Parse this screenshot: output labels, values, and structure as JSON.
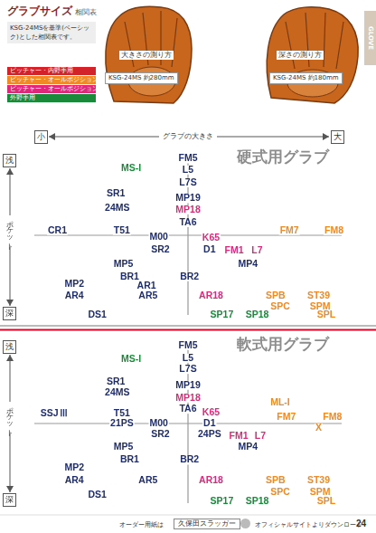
{
  "header": {
    "title": "グラブサイズ",
    "title_suffix": "相関表",
    "note": "KSG-24MSを基準(ベーシック)とした相関表です。",
    "tab": "GLOVE",
    "legend": [
      {
        "text": "ピッチャー・内野手用",
        "color": "#d2232a"
      },
      {
        "text": "ピッチャー・オールポジション用",
        "color": "#f08a24"
      },
      {
        "text": "ピッチャー・オールポジション用",
        "color": "#e0287a"
      },
      {
        "text": "外野手用",
        "color": "#1a8a3a"
      }
    ],
    "photos": [
      {
        "caption": "大きさの測り方",
        "model": "KSG-24MS",
        "size": "約280mm"
      },
      {
        "caption": "深さの測り方",
        "model": "KSG-24MS",
        "size": "約180mm"
      }
    ]
  },
  "size_axis": {
    "small": "小",
    "label": "グラブの大きさ",
    "large": "大"
  },
  "chart_data": [
    {
      "type": "scatter",
      "title": "硬式用グラブ",
      "depth_labels": {
        "top": "浅",
        "middle": "ポケット",
        "bottom": "深"
      },
      "labels": [
        "MS-I",
        "FM5",
        "L5",
        "L7S",
        "SR1",
        "24MS",
        "MP19",
        "MP18",
        "TA6",
        "CR1",
        "T51",
        "M00",
        "SR2",
        "K65",
        "D1",
        "FM7",
        "FM8",
        "FM1",
        "L7",
        "MP4",
        "MP5",
        "BR1",
        "AR1",
        "AR5",
        "BR2",
        "MP2",
        "AR4",
        "DS1",
        "AR18",
        "SPB",
        "ST39",
        "SPC",
        "SPM",
        "SP17",
        "SP18",
        "SPL"
      ],
      "x": [
        -3.7,
        0,
        0,
        0,
        -4.7,
        -4.6,
        0,
        0,
        0,
        -8.5,
        -4.3,
        -1.9,
        -1.8,
        1.5,
        1.4,
        6.6,
        9.5,
        3.0,
        4.5,
        3.9,
        -4.2,
        -3.8,
        -2.7,
        -2.6,
        0.1,
        -7.4,
        -7.4,
        -5.9,
        1.5,
        5.7,
        8.5,
        6.0,
        8.6,
        2.2,
        4.5,
        9.0
      ],
      "values": [
        0.8,
        0.2,
        0.9,
        1.7,
        2.4,
        3.3,
        2.7,
        3.4,
        4.2,
        4.7,
        4.7,
        5.1,
        5.9,
        5.2,
        5.9,
        4.7,
        4.7,
        6.0,
        6.0,
        6.8,
        6.8,
        7.6,
        8.2,
        8.8,
        7.6,
        8.1,
        8.8,
        10.0,
        8.8,
        8.8,
        8.8,
        9.5,
        9.5,
        10.0,
        10.0,
        10.0
      ],
      "colors": [
        "#1a8a3a",
        "#1f2d6b",
        "#1f2d6b",
        "#1f2d6b",
        "#1f2d6b",
        "#1f2d6b",
        "#1f2d6b",
        "#e0287a",
        "#1f2d6b",
        "#1f2d6b",
        "#1f2d6b",
        "#1f2d6b",
        "#1f2d6b",
        "#e0287a",
        "#1f2d6b",
        "#f08a24",
        "#f08a24",
        "#e0287a",
        "#e0287a",
        "#1f2d6b",
        "#1f2d6b",
        "#1f2d6b",
        "#1f2d6b",
        "#1f2d6b",
        "#1f2d6b",
        "#1f2d6b",
        "#1f2d6b",
        "#1f2d6b",
        "#e0287a",
        "#f08a24",
        "#f08a24",
        "#f08a24",
        "#f08a24",
        "#1a8a3a",
        "#1a8a3a",
        "#f08a24"
      ],
      "xlim": [
        -10,
        10
      ],
      "ylim": [
        0,
        10
      ],
      "tick_labels": false,
      "grid": false
    },
    {
      "type": "scatter",
      "title": "軟式用グラブ",
      "depth_labels": {
        "top": "浅",
        "middle": "ポケット",
        "bottom": "深"
      },
      "labels": [
        "MS-I",
        "FM5",
        "L5",
        "L7S",
        "SR1",
        "24MS",
        "MP19",
        "MP18",
        "TA6",
        "ML-I",
        "SSJⅢ",
        "T51",
        "K65",
        "FM7",
        "FM8",
        "21PS",
        "M00",
        "D1",
        "X",
        "SR2",
        "24PS",
        "FM1",
        "L7",
        "MP4",
        "MP5",
        "BR1",
        "BR2",
        "MP2",
        "AR4",
        "AR5",
        "AR18",
        "DS1",
        "SPB",
        "ST39",
        "SPC",
        "SPM",
        "SP17",
        "SP18",
        "SPL"
      ],
      "x": [
        -3.7,
        0,
        0,
        0,
        -4.7,
        -4.6,
        0,
        0,
        0,
        6.0,
        -8.7,
        -4.3,
        1.5,
        6.4,
        9.4,
        -4.3,
        -1.9,
        1.4,
        8.5,
        -1.8,
        1.4,
        3.3,
        4.7,
        3.9,
        -4.2,
        -3.8,
        0.1,
        -7.4,
        -7.4,
        -2.6,
        1.5,
        -5.9,
        5.7,
        8.5,
        6.0,
        8.6,
        2.2,
        4.5,
        9.0
      ],
      "values": [
        1.0,
        0.1,
        0.9,
        1.6,
        2.4,
        3.1,
        2.6,
        3.4,
        4.1,
        3.7,
        4.4,
        4.4,
        4.3,
        4.6,
        4.6,
        5.0,
        5.0,
        5.0,
        5.3,
        5.7,
        5.7,
        5.8,
        5.8,
        6.5,
        6.5,
        7.3,
        7.3,
        7.8,
        8.6,
        8.6,
        8.6,
        9.5,
        8.6,
        8.6,
        9.3,
        9.3,
        9.9,
        9.9,
        9.9
      ],
      "colors": [
        "#1a8a3a",
        "#1f2d6b",
        "#1f2d6b",
        "#1f2d6b",
        "#1f2d6b",
        "#1f2d6b",
        "#1f2d6b",
        "#e0287a",
        "#1f2d6b",
        "#f08a24",
        "#1f2d6b",
        "#1f2d6b",
        "#e0287a",
        "#f08a24",
        "#f08a24",
        "#1f2d6b",
        "#1f2d6b",
        "#1f2d6b",
        "#f08a24",
        "#1f2d6b",
        "#1f2d6b",
        "#e0287a",
        "#e0287a",
        "#1f2d6b",
        "#1f2d6b",
        "#1f2d6b",
        "#1f2d6b",
        "#1f2d6b",
        "#1f2d6b",
        "#1f2d6b",
        "#e0287a",
        "#1f2d6b",
        "#f08a24",
        "#f08a24",
        "#f08a24",
        "#f08a24",
        "#1a8a3a",
        "#1a8a3a",
        "#f08a24"
      ],
      "xlim": [
        -10,
        10
      ],
      "ylim": [
        0,
        10
      ],
      "tick_labels": false,
      "grid": false
    }
  ],
  "footer": {
    "lead": "オーダー用紙は",
    "search": "久保田スラッガー",
    "tail": "オフィシャルサイトよりダウンロード",
    "page": 24
  }
}
